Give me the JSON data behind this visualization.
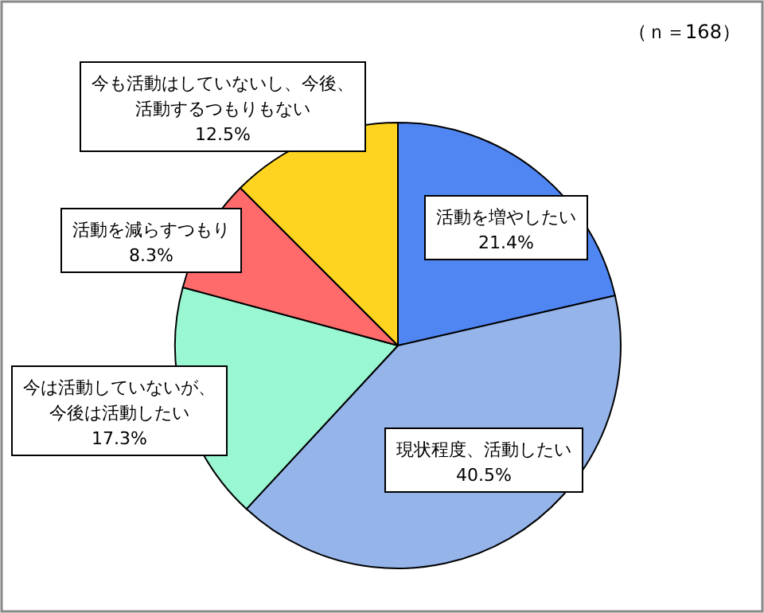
{
  "chart_data": {
    "type": "pie",
    "categories": [
      "活動を増やしたい",
      "現状程度、活動したい",
      "今は活動していないが、今後は活動したい",
      "活動を減らすつもり",
      "今も活動はしていないし、今後、活動するつもりもない"
    ],
    "values": [
      21.4,
      40.5,
      17.3,
      8.3,
      12.5
    ],
    "colors": [
      "#4f86f2",
      "#94b4ea",
      "#99f7d2",
      "#ff6b6b",
      "#ffd421"
    ],
    "value_labels": [
      "21.4%",
      "40.5%",
      "17.3%",
      "8.3%",
      "12.5%"
    ],
    "annotations": [
      "（ｎ＝168）"
    ]
  }
}
